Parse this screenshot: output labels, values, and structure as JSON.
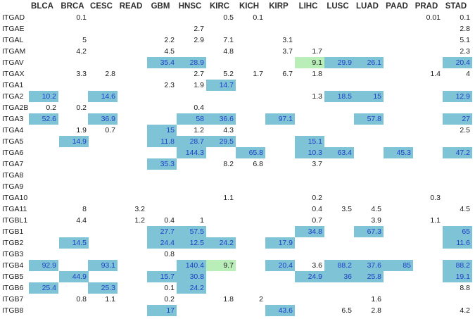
{
  "chart_data": {
    "type": "table",
    "title": "",
    "columns": [
      "BLCA",
      "BRCA",
      "CESC",
      "READ",
      "GBM",
      "HNSC",
      "KIRC",
      "KICH",
      "KIRP",
      "LIHC",
      "LUSC",
      "LUAD",
      "PAAD",
      "PRAD",
      "STAD"
    ],
    "rows": [
      {
        "label": "ITGAD",
        "values": [
          "",
          "0.1",
          "",
          "",
          "",
          "",
          "0.5",
          "0.1",
          "",
          "",
          "",
          "",
          "",
          "0.01",
          "0.1"
        ]
      },
      {
        "label": "ITGAE",
        "values": [
          "",
          "",
          "",
          "",
          "",
          "2.7",
          "",
          "",
          "",
          "",
          "",
          "",
          "",
          "",
          "2.8"
        ]
      },
      {
        "label": "ITGAL",
        "values": [
          "",
          "5",
          "",
          "",
          "2.2",
          "2.9",
          "7.1",
          "",
          "3.1",
          "",
          "",
          "",
          "",
          "",
          "5.1"
        ]
      },
      {
        "label": "ITGAM",
        "values": [
          "",
          "4.2",
          "",
          "",
          "4.5",
          "",
          "4.8",
          "",
          "3.7",
          "1.7",
          "",
          "",
          "",
          "",
          "2.3"
        ]
      },
      {
        "label": "ITGAV",
        "values": [
          "",
          "",
          "",
          "",
          "35.4",
          "28.9",
          "",
          "",
          "",
          "9.1",
          "29.9",
          "26.1",
          "",
          "",
          "20.4"
        ]
      },
      {
        "label": "ITGAX",
        "values": [
          "",
          "3.3",
          "2.8",
          "",
          "",
          "2.7",
          "5.2",
          "1.7",
          "6.7",
          "1.8",
          "",
          "",
          "",
          "1.4",
          "4"
        ]
      },
      {
        "label": "ITGA1",
        "values": [
          "",
          "",
          "",
          "",
          "2.3",
          "1.9",
          "14.7",
          "",
          "",
          "",
          "",
          "",
          "",
          "",
          ""
        ]
      },
      {
        "label": "ITGA2",
        "values": [
          "10.2",
          "",
          "14.6",
          "",
          "",
          "",
          "",
          "",
          "",
          "1.3",
          "18.5",
          "15",
          "",
          "",
          "12.9"
        ]
      },
      {
        "label": "ITGA2B",
        "values": [
          "0.2",
          "0.2",
          "",
          "",
          "",
          "0.4",
          "",
          "",
          "",
          "",
          "",
          "",
          "",
          "",
          ""
        ]
      },
      {
        "label": "ITGA3",
        "values": [
          "52.6",
          "",
          "36.9",
          "",
          "",
          "58",
          "36.6",
          "",
          "97.1",
          "",
          "",
          "57.8",
          "",
          "",
          "27"
        ]
      },
      {
        "label": "ITGA4",
        "values": [
          "",
          "1.9",
          "0.7",
          "",
          "15",
          "1.2",
          "4.3",
          "",
          "",
          "",
          "",
          "",
          "",
          "",
          "2.5"
        ]
      },
      {
        "label": "ITGA5",
        "values": [
          "",
          "14.9",
          "",
          "",
          "11.8",
          "28.7",
          "29.5",
          "",
          "",
          "15.1",
          "",
          "",
          "",
          "",
          ""
        ]
      },
      {
        "label": "ITGA6",
        "values": [
          "",
          "",
          "",
          "",
          "",
          "144.3",
          "",
          "65.8",
          "",
          "10.3",
          "63.4",
          "",
          "45.3",
          "",
          "47.2"
        ]
      },
      {
        "label": "ITGA7",
        "values": [
          "",
          "",
          "",
          "",
          "35.3",
          "",
          "8.2",
          "6.8",
          "",
          "3.7",
          "",
          "",
          "",
          "",
          ""
        ]
      },
      {
        "label": "ITGA8",
        "values": [
          "",
          "",
          "",
          "",
          "",
          "",
          "",
          "",
          "",
          "",
          "",
          "",
          "",
          "",
          ""
        ]
      },
      {
        "label": "ITGA9",
        "values": [
          "",
          "",
          "",
          "",
          "",
          "",
          "",
          "",
          "",
          "",
          "",
          "",
          "",
          "",
          ""
        ]
      },
      {
        "label": "ITGA10",
        "values": [
          "",
          "",
          "",
          "",
          "",
          "",
          "1.1",
          "",
          "",
          "0.2",
          "",
          "",
          "",
          "0.3",
          ""
        ]
      },
      {
        "label": "ITGA11",
        "values": [
          "",
          "8",
          "",
          "3.2",
          "",
          "",
          "",
          "",
          "",
          "0.4",
          "3.5",
          "4.5",
          "",
          "",
          "4.5"
        ]
      },
      {
        "label": "ITGBL1",
        "values": [
          "",
          "4.4",
          "",
          "1.2",
          "0.4",
          "1",
          "",
          "",
          "",
          "0.7",
          "",
          "3.9",
          "",
          "1.1",
          ""
        ]
      },
      {
        "label": "ITGB1",
        "values": [
          "",
          "",
          "",
          "",
          "27.7",
          "57.5",
          "",
          "",
          "",
          "34.8",
          "",
          "67.3",
          "",
          "",
          "65"
        ]
      },
      {
        "label": "ITGB2",
        "values": [
          "",
          "14.5",
          "",
          "",
          "24.4",
          "12.5",
          "24.2",
          "",
          "17.9",
          "",
          "",
          "",
          "",
          "",
          "11.6"
        ]
      },
      {
        "label": "ITGB3",
        "values": [
          "",
          "",
          "",
          "",
          "0.8",
          "",
          "",
          "",
          "",
          "",
          "",
          "",
          "",
          "",
          ""
        ]
      },
      {
        "label": "ITGB4",
        "values": [
          "92.9",
          "",
          "93.1",
          "",
          "",
          "140.4",
          "9.7",
          "",
          "20.4",
          "3.6",
          "88.2",
          "37.6",
          "85",
          "",
          "88.2"
        ]
      },
      {
        "label": "ITGB5",
        "values": [
          "",
          "44.9",
          "",
          "",
          "15.7",
          "30.8",
          "",
          "",
          "",
          "24.9",
          "36",
          "25.8",
          "",
          "",
          "19.1"
        ]
      },
      {
        "label": "ITGB6",
        "values": [
          "25.4",
          "",
          "25.3",
          "",
          "0.1",
          "24.2",
          "",
          "",
          "",
          "",
          "",
          "",
          "",
          "",
          "8.8"
        ]
      },
      {
        "label": "ITGB7",
        "values": [
          "",
          "0.8",
          "1.1",
          "",
          "0.2",
          "",
          "1.8",
          "2",
          "",
          "",
          "",
          "1.6",
          "",
          "",
          ""
        ]
      },
      {
        "label": "ITGB8",
        "values": [
          "",
          "",
          "",
          "",
          "17",
          "",
          "",
          "",
          "43.6",
          "",
          "6.5",
          "2.8",
          "",
          "",
          "4.2"
        ]
      }
    ],
    "highlight": [
      "",
      "",
      "",
      "",
      "",
      "",
      "",
      "",
      "",
      "",
      "",
      "",
      "",
      "",
      "",
      "",
      "",
      "",
      "",
      "",
      "",
      "",
      "",
      "",
      "",
      "",
      "",
      "",
      "",
      "",
      "",
      "",
      "",
      "",
      "",
      "",
      "",
      "",
      "",
      "",
      "",
      "",
      "",
      "",
      "",
      "",
      "",
      "",
      "",
      "",
      "",
      "",
      "",
      "",
      "",
      "",
      "",
      "",
      "",
      "",
      "",
      "",
      "",
      "",
      "b",
      "b",
      "",
      "",
      "",
      "g",
      "b",
      "b",
      "",
      "",
      "b",
      "",
      "",
      "",
      "",
      "",
      "",
      "",
      "",
      "",
      "",
      "",
      "",
      "",
      "",
      "",
      "",
      "",
      "",
      "",
      "",
      "",
      "b",
      "",
      "",
      "",
      "",
      "",
      "",
      "",
      "",
      "b",
      "",
      "b",
      "",
      "",
      "",
      "",
      "",
      "",
      "",
      "b",
      "b",
      "",
      "",
      "b",
      "",
      "",
      "",
      "",
      "",
      "",
      "",
      "",
      "",
      "",
      "",
      "",
      "",
      "",
      "",
      "b",
      "",
      "b",
      "",
      "",
      "b",
      "b",
      "",
      "b",
      "",
      "",
      "b",
      "",
      "",
      "b",
      "",
      "",
      "",
      "",
      "b",
      "",
      "",
      "",
      "",
      "",
      "",
      "",
      "",
      "",
      "",
      "",
      "b",
      "",
      "",
      "b",
      "b",
      "b",
      "",
      "",
      "b",
      "",
      "",
      "",
      "",
      "",
      "",
      "",
      "",
      "",
      "",
      "b",
      "",
      "b",
      "",
      "b",
      "b",
      "",
      "b",
      "",
      "b",
      "",
      "",
      "",
      "",
      "b",
      "",
      "",
      "",
      "",
      "",
      "",
      "",
      "",
      "",
      "",
      "",
      "",
      "",
      "",
      "",
      "",
      "",
      "",
      "",
      "",
      "",
      "",
      "",
      "",
      "",
      "",
      "",
      "",
      "",
      "",
      "",
      "",
      "",
      "",
      "",
      "",
      "",
      "",
      "",
      "",
      "",
      "",
      "",
      "",
      "",
      "",
      "",
      "",
      "",
      "",
      "",
      "",
      "",
      "",
      "",
      "",
      "",
      "",
      "",
      "",
      "",
      "",
      "",
      "",
      "",
      "",
      "",
      "",
      "",
      "",
      "",
      "",
      "",
      "",
      "",
      "",
      "",
      "",
      "",
      "",
      "",
      "",
      "",
      "",
      "",
      "",
      "",
      "",
      "",
      "b",
      "b",
      "",
      "",
      "",
      "b",
      "",
      "b",
      "",
      "",
      "b",
      "",
      "b",
      "",
      "",
      "b",
      "b",
      "b",
      "",
      "b",
      "",
      "",
      "",
      "",
      "",
      "b",
      "",
      "",
      "",
      "",
      "",
      "",
      "",
      "",
      "",
      "",
      "",
      "",
      "",
      "",
      "",
      "b",
      "",
      "b",
      "",
      "",
      "b",
      "g",
      "",
      "b",
      "",
      "b",
      "b",
      "b",
      "",
      "b",
      "",
      "b",
      "",
      "",
      "b",
      "b",
      "",
      "",
      "",
      "b",
      "b",
      "b",
      "",
      "",
      "b",
      "b",
      "",
      "b",
      "",
      "",
      "b",
      "",
      "",
      "",
      "",
      "",
      "",
      "",
      "",
      "",
      "",
      "",
      "",
      "",
      "",
      "",
      "",
      "",
      "",
      "",
      "",
      "",
      "",
      "",
      "",
      "",
      "",
      "",
      "",
      "b",
      "",
      "",
      "",
      "b",
      "",
      "",
      "",
      "",
      "",
      ""
    ],
    "colors": {
      "blue_fill": "#7fc3d6",
      "blue_text": "#1e3fc8",
      "green_fill": "#b9eeb9",
      "text": "#1a1a1a"
    }
  }
}
